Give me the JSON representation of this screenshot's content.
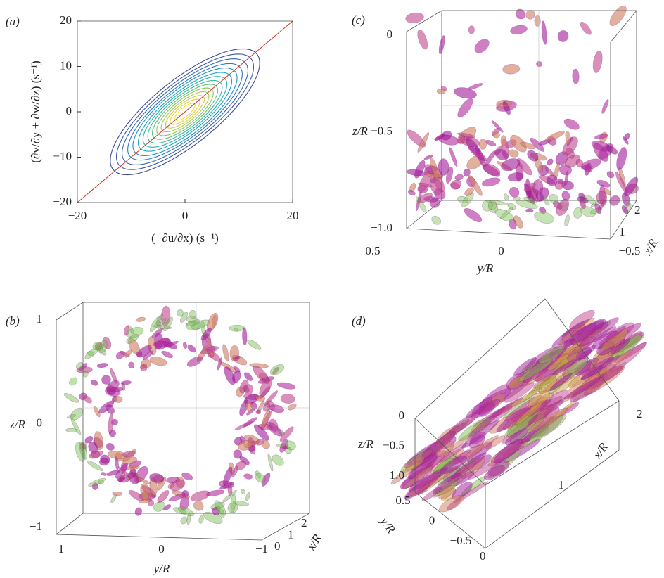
{
  "chart_data": [
    {
      "type": "contour",
      "panel_label": "(a)",
      "xlabel": "(−∂u/∂x) (s⁻¹)",
      "ylabel": "(∂v/∂y + ∂w/∂z) (s⁻¹)",
      "xlim": [
        -20,
        20
      ],
      "ylim": [
        -20,
        20
      ],
      "xticks": [
        {
          "value": -20,
          "label": "−20"
        },
        0,
        20
      ],
      "yticks": [
        {
          "value": -20,
          "label": "−20"
        },
        {
          "value": -10,
          "label": "−10"
        },
        0,
        10,
        20
      ],
      "reference_line": {
        "x": [
          -20,
          20
        ],
        "y": [
          -20,
          20
        ],
        "color": "#e0301e"
      },
      "contours": [
        {
          "major": 18.5,
          "minor": 6.6,
          "color": "#3f4a9c"
        },
        {
          "major": 17.0,
          "minor": 6.0,
          "color": "#3a56a8"
        },
        {
          "major": 15.6,
          "minor": 5.5,
          "color": "#3566b5"
        },
        {
          "major": 14.2,
          "minor": 5.0,
          "color": "#2e79c2"
        },
        {
          "major": 12.9,
          "minor": 4.6,
          "color": "#2390c8"
        },
        {
          "major": 11.6,
          "minor": 4.1,
          "color": "#1aa3c4"
        },
        {
          "major": 10.4,
          "minor": 3.7,
          "color": "#22b2b0"
        },
        {
          "major": 9.2,
          "minor": 3.3,
          "color": "#3dbb96"
        },
        {
          "major": 8.1,
          "minor": 2.9,
          "color": "#60c27a"
        },
        {
          "major": 7.0,
          "minor": 2.5,
          "color": "#86c861"
        },
        {
          "major": 5.9,
          "minor": 2.1,
          "color": "#aacc4c"
        },
        {
          "major": 4.8,
          "minor": 1.7,
          "color": "#cdd03c"
        },
        {
          "major": 3.7,
          "minor": 1.3,
          "color": "#e8d232"
        },
        {
          "major": 2.5,
          "minor": 0.9,
          "color": "#f8dc2c"
        }
      ]
    },
    {
      "type": "isosurface",
      "panel_label": "(b)",
      "xlabel": "x/R",
      "ylabel": "y/R",
      "zlabel": "z/R",
      "xlim": [
        0,
        2
      ],
      "ylim": [
        -1,
        1
      ],
      "zlim": [
        -1,
        1
      ],
      "xticks": [
        0,
        1,
        2
      ],
      "yticks": [
        {
          "value": -1,
          "label": "−1"
        },
        0,
        1
      ],
      "zticks": [
        {
          "value": -1,
          "label": "−1"
        },
        0,
        1
      ]
    },
    {
      "type": "isosurface",
      "panel_label": "(c)",
      "xlabel": "x/R",
      "ylabel": "y/R",
      "zlabel": "z/R",
      "xlim": [
        0,
        2
      ],
      "ylim": [
        -0.5,
        0.5
      ],
      "zlim": [
        -1,
        0
      ],
      "xticks": [
        1,
        2
      ],
      "yticks": [
        {
          "value": -0.5,
          "label": "−0.5"
        },
        0,
        0.5
      ],
      "zticks": [
        {
          "value": -1,
          "label": "−1.0"
        },
        {
          "value": -0.5,
          "label": "−0.5"
        },
        0
      ]
    },
    {
      "type": "isosurface",
      "panel_label": "(d)",
      "xlabel": "x/R",
      "ylabel": "y/R",
      "zlabel": "z/R",
      "xlim": [
        0,
        2
      ],
      "ylim": [
        -0.5,
        0.5
      ],
      "zlim": [
        -1,
        0
      ],
      "xticks": [
        0,
        1,
        2
      ],
      "yticks": [
        {
          "value": -0.5,
          "label": "−0.5"
        },
        0,
        0.5
      ],
      "zticks": [
        {
          "value": -1,
          "label": "−1.0"
        },
        {
          "value": -0.5,
          "label": "−0.5"
        },
        0
      ]
    }
  ]
}
